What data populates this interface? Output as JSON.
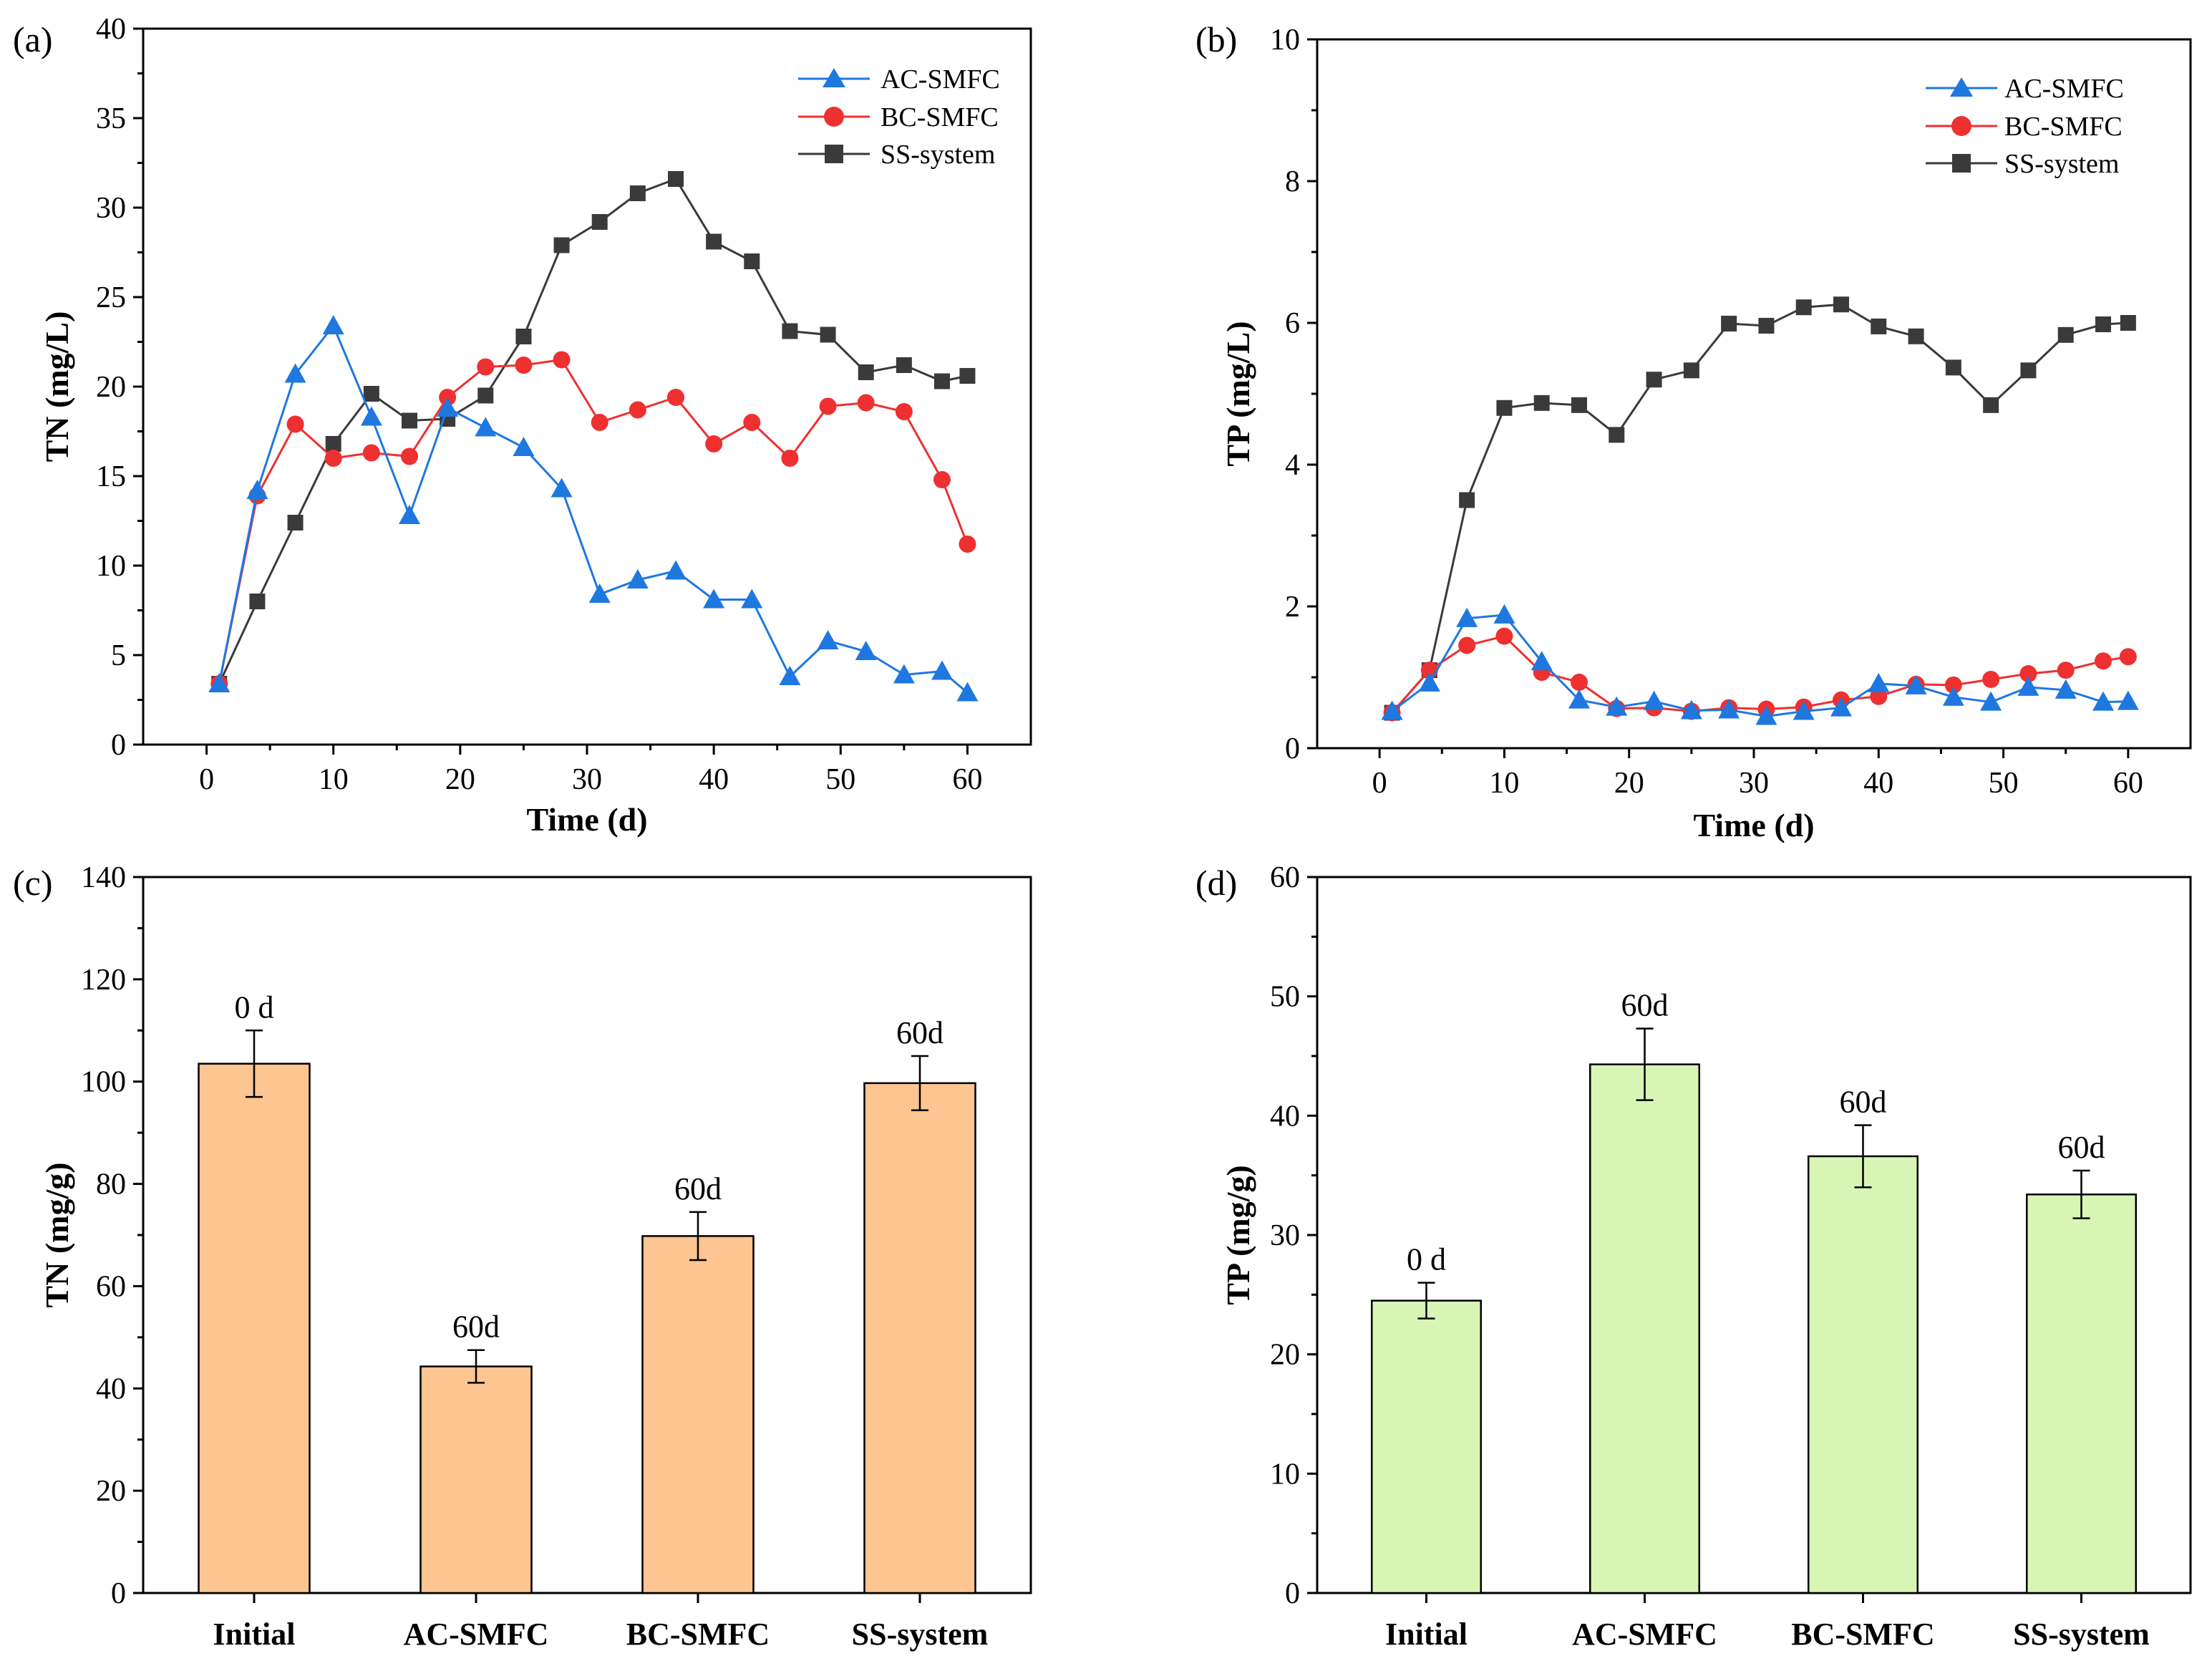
{
  "chart_data": [
    {
      "type": "line",
      "panel_label": "(a)",
      "title": "",
      "xlabel": "Time (d)",
      "ylabel": "TN (mg/L)",
      "xlim": [
        -5,
        65
      ],
      "ylim": [
        0,
        40
      ],
      "xticks": [
        0,
        10,
        20,
        30,
        40,
        50,
        60
      ],
      "yticks": [
        0,
        5,
        10,
        15,
        20,
        25,
        30,
        35,
        40
      ],
      "legend_position": "top-right",
      "grid": false,
      "x": [
        1,
        4,
        7,
        10,
        13,
        16,
        19,
        22,
        25,
        28,
        31,
        34,
        37,
        40,
        43,
        46,
        49,
        52,
        55,
        58,
        60
      ],
      "series": [
        {
          "name": "AC-SMFC",
          "color": "#1f77e0",
          "marker": "triangle",
          "values": [
            3.4,
            14.2,
            20.7,
            23.4,
            18.3,
            12.8,
            18.8,
            17.7,
            16.6,
            14.3,
            8.4,
            9.2,
            9.7,
            8.1,
            8.1,
            3.8,
            5.8,
            5.2,
            3.9,
            4.1,
            2.9
          ]
        },
        {
          "name": "BC-SMFC",
          "color": "#ee3030",
          "marker": "circle",
          "values": [
            3.4,
            13.9,
            17.9,
            16.0,
            16.3,
            16.1,
            19.4,
            21.1,
            21.2,
            21.5,
            18.0,
            18.7,
            19.4,
            16.8,
            18.0,
            16.0,
            18.9,
            19.1,
            18.6,
            14.8,
            11.2
          ]
        },
        {
          "name": "SS-system",
          "color": "#3a3a3a",
          "marker": "square",
          "values": [
            3.4,
            8.0,
            12.4,
            16.8,
            19.6,
            18.1,
            18.2,
            19.5,
            22.8,
            27.9,
            29.2,
            30.8,
            31.6,
            28.1,
            27.0,
            23.1,
            22.9,
            20.8,
            21.2,
            20.3,
            20.6
          ]
        }
      ]
    },
    {
      "type": "line",
      "panel_label": "(b)",
      "title": "",
      "xlabel": "Time (d)",
      "ylabel": "TP (mg/L)",
      "xlim": [
        -5,
        65
      ],
      "ylim": [
        0,
        10
      ],
      "xticks": [
        0,
        10,
        20,
        30,
        40,
        50,
        60
      ],
      "yticks": [
        0,
        2,
        4,
        6,
        8,
        10
      ],
      "legend_position": "top-right",
      "grid": false,
      "x": [
        1,
        4,
        7,
        10,
        13,
        16,
        19,
        22,
        25,
        28,
        31,
        34,
        37,
        40,
        43,
        46,
        49,
        52,
        55,
        58,
        60
      ],
      "series": [
        {
          "name": "AC-SMFC",
          "color": "#1f77e0",
          "marker": "triangle",
          "values": [
            0.52,
            0.92,
            1.83,
            1.88,
            1.22,
            0.68,
            0.58,
            0.66,
            0.53,
            0.54,
            0.45,
            0.52,
            0.57,
            0.91,
            0.88,
            0.72,
            0.65,
            0.86,
            0.82,
            0.65,
            0.66
          ]
        },
        {
          "name": "BC-SMFC",
          "color": "#ee3030",
          "marker": "circle",
          "values": [
            0.5,
            1.1,
            1.45,
            1.58,
            1.07,
            0.93,
            0.56,
            0.57,
            0.52,
            0.57,
            0.55,
            0.58,
            0.68,
            0.73,
            0.9,
            0.89,
            0.97,
            1.05,
            1.1,
            1.23,
            1.29
          ]
        },
        {
          "name": "SS-system",
          "color": "#3a3a3a",
          "marker": "square",
          "values": [
            0.5,
            1.1,
            3.5,
            4.8,
            4.87,
            4.84,
            4.42,
            5.2,
            5.33,
            5.99,
            5.96,
            6.22,
            6.26,
            5.95,
            5.81,
            5.37,
            4.84,
            5.33,
            5.83,
            5.98,
            6.0
          ]
        }
      ]
    },
    {
      "type": "bar",
      "panel_label": "(c)",
      "title": "",
      "xlabel": "",
      "ylabel": "TN (mg/g)",
      "ylim": [
        0,
        140
      ],
      "yticks": [
        0,
        20,
        40,
        60,
        80,
        100,
        120,
        140
      ],
      "bar_color": "#fcc591",
      "categories": [
        "Initial",
        "AC-SMFC",
        "BC-SMFC",
        "SS-system"
      ],
      "values": [
        103.5,
        44.3,
        69.8,
        99.7
      ],
      "errors": [
        6.5,
        3.2,
        4.7,
        5.3
      ],
      "labels": [
        "0 d",
        "60d",
        "60d",
        "60d"
      ]
    },
    {
      "type": "bar",
      "panel_label": "(d)",
      "title": "",
      "xlabel": "",
      "ylabel": "TP (mg/g)",
      "ylim": [
        0,
        60
      ],
      "yticks": [
        0,
        10,
        20,
        30,
        40,
        50,
        60
      ],
      "bar_color": "#d8f5b5",
      "categories": [
        "Initial",
        "AC-SMFC",
        "BC-SMFC",
        "SS-system"
      ],
      "values": [
        24.5,
        44.3,
        36.6,
        33.4
      ],
      "errors": [
        1.5,
        3.0,
        2.6,
        2.0
      ],
      "labels": [
        "0 d",
        "60d",
        "60d",
        "60d"
      ]
    }
  ]
}
